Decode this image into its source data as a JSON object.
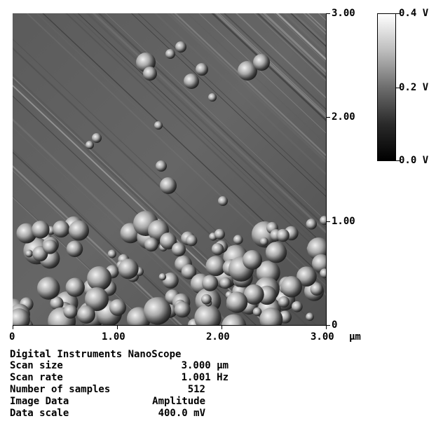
{
  "image": {
    "description_type": "AFM amplitude scan",
    "colormap": [
      "#000000",
      "#2a2a2a",
      "#6e6e6e",
      "#bdbdbd",
      "#ffffff"
    ]
  },
  "y_axis": {
    "ticks": [
      "3.00",
      "2.00",
      "1.00",
      "0"
    ]
  },
  "x_axis": {
    "ticks": [
      "0",
      "1.00",
      "2.00",
      "3.00"
    ],
    "unit": "µm"
  },
  "colorbar": {
    "ticks": [
      "0.4 V",
      "0.2 V",
      "0.0 V"
    ]
  },
  "info": {
    "title": "Digital Instruments NanoScope",
    "rows": [
      {
        "label": "Scan size",
        "value": "3.000 µm"
      },
      {
        "label": "Scan rate",
        "value": "1.001 Hz"
      },
      {
        "label": "Number of samples",
        "value": "512"
      },
      {
        "label": "Image Data",
        "value": "Amplitude"
      },
      {
        "label": "Data scale",
        "value": "400.0 mV"
      }
    ]
  }
}
